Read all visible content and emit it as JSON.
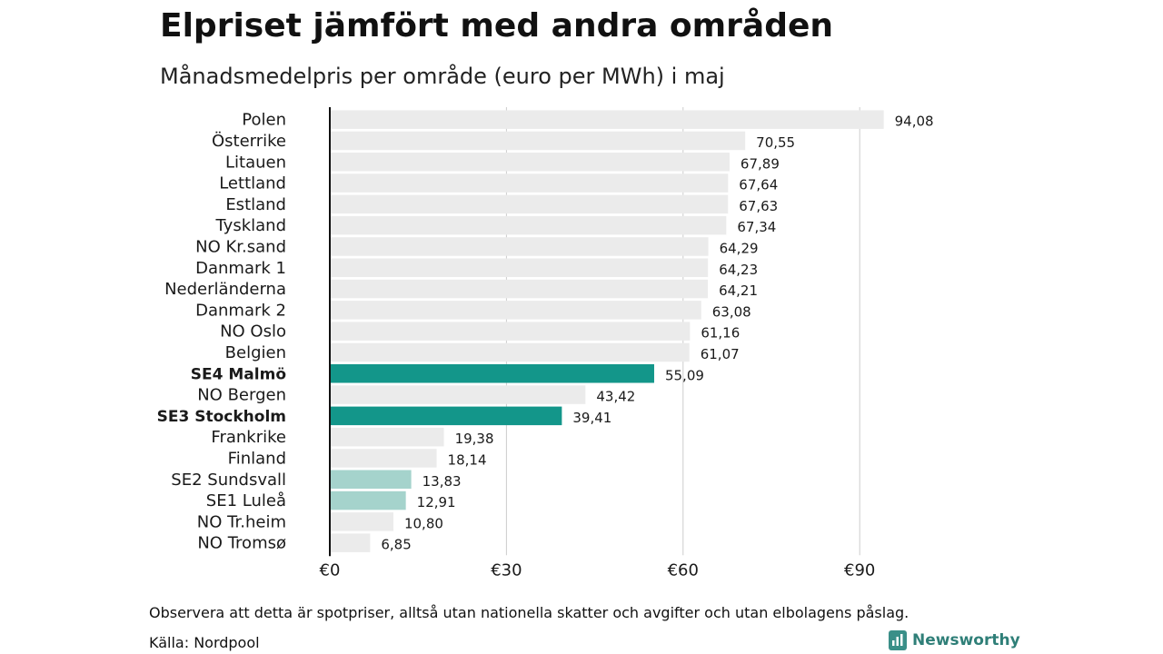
{
  "title": "Elpriset jämfört med andra områden",
  "subtitle": "Månadsmedelpris per område (euro per MWh) i maj",
  "footnote": "Observera att detta är spotpriser, alltså utan nationella skatter och avgifter och utan elbolagens påslag.",
  "source": "Källa: Nordpool",
  "brand": "Newsworthy",
  "colors": {
    "default": "#ebebeb",
    "highlight": "#13968a",
    "light": "#a5d3cc",
    "grid": "#cccccc",
    "axis": "#111111"
  },
  "chart_data": {
    "type": "bar",
    "orientation": "horizontal",
    "xlim": [
      0,
      100
    ],
    "xticks": [
      0,
      30,
      60,
      90
    ],
    "xtick_labels": [
      "€0",
      "€30",
      "€60",
      "€90"
    ],
    "grid": true,
    "bars": [
      {
        "label": "Polen",
        "value": 94.08,
        "value_label": "94,08",
        "style": "default"
      },
      {
        "label": "Österrike",
        "value": 70.55,
        "value_label": "70,55",
        "style": "default"
      },
      {
        "label": "Litauen",
        "value": 67.89,
        "value_label": "67,89",
        "style": "default"
      },
      {
        "label": "Lettland",
        "value": 67.64,
        "value_label": "67,64",
        "style": "default"
      },
      {
        "label": "Estland",
        "value": 67.63,
        "value_label": "67,63",
        "style": "default"
      },
      {
        "label": "Tyskland",
        "value": 67.34,
        "value_label": "67,34",
        "style": "default"
      },
      {
        "label": "NO Kr.sand",
        "value": 64.29,
        "value_label": "64,29",
        "style": "default"
      },
      {
        "label": "Danmark 1",
        "value": 64.23,
        "value_label": "64,23",
        "style": "default"
      },
      {
        "label": "Nederländerna",
        "value": 64.21,
        "value_label": "64,21",
        "style": "default"
      },
      {
        "label": "Danmark 2",
        "value": 63.08,
        "value_label": "63,08",
        "style": "default"
      },
      {
        "label": "NO Oslo",
        "value": 61.16,
        "value_label": "61,16",
        "style": "default"
      },
      {
        "label": "Belgien",
        "value": 61.07,
        "value_label": "61,07",
        "style": "default"
      },
      {
        "label": "SE4 Malmö",
        "value": 55.09,
        "value_label": "55,09",
        "style": "highlight",
        "bold": true
      },
      {
        "label": "NO Bergen",
        "value": 43.42,
        "value_label": "43,42",
        "style": "default"
      },
      {
        "label": "SE3 Stockholm",
        "value": 39.41,
        "value_label": "39,41",
        "style": "highlight",
        "bold": true
      },
      {
        "label": "Frankrike",
        "value": 19.38,
        "value_label": "19,38",
        "style": "default"
      },
      {
        "label": "Finland",
        "value": 18.14,
        "value_label": "18,14",
        "style": "default"
      },
      {
        "label": "SE2 Sundsvall",
        "value": 13.83,
        "value_label": "13,83",
        "style": "light"
      },
      {
        "label": "SE1 Luleå",
        "value": 12.91,
        "value_label": "12,91",
        "style": "light"
      },
      {
        "label": "NO Tr.heim",
        "value": 10.8,
        "value_label": "10,80",
        "style": "default"
      },
      {
        "label": "NO Tromsø",
        "value": 6.85,
        "value_label": "6,85",
        "style": "default"
      }
    ]
  }
}
